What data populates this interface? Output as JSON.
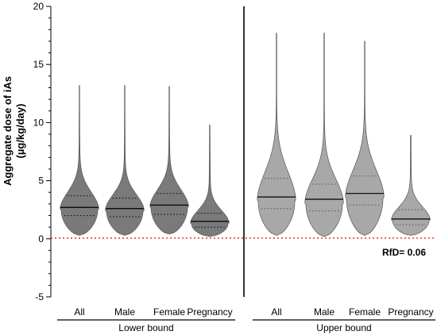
{
  "chart_data": {
    "type": "violin",
    "ylabel_line1": "Aggregate dose of iAs",
    "ylabel_line2": "(µg/kg/day)",
    "ylim": [
      -5,
      20
    ],
    "yticks": [
      -5,
      0,
      5,
      10,
      15,
      20
    ],
    "grid": false,
    "reference_line": {
      "label": "RfD= 0.06",
      "value": 0.06,
      "color": "#e02020"
    },
    "groups": [
      {
        "name": "Lower bound",
        "fill": "#7a7a7a",
        "quartile_style": "dotted-dark",
        "series": [
          {
            "category": "All",
            "min": 0.3,
            "q1": 2.0,
            "median": 2.7,
            "q3": 3.7,
            "max": 13.2,
            "peak": 2.5,
            "width": 0.92
          },
          {
            "category": "Male",
            "min": 0.3,
            "q1": 1.9,
            "median": 2.6,
            "q3": 3.5,
            "max": 13.2,
            "peak": 2.4,
            "width": 0.92
          },
          {
            "category": "Female",
            "min": 0.4,
            "q1": 2.1,
            "median": 2.9,
            "q3": 3.9,
            "max": 13.1,
            "peak": 2.7,
            "width": 0.92
          },
          {
            "category": "Pregnancy",
            "min": 0.2,
            "q1": 1.0,
            "median": 1.5,
            "q3": 2.2,
            "max": 9.8,
            "peak": 1.3,
            "width": 0.92
          }
        ]
      },
      {
        "name": "Upper bound",
        "fill": "#a8a8a8",
        "quartile_style": "dotted-light",
        "series": [
          {
            "category": "All",
            "min": 0.3,
            "q1": 2.6,
            "median": 3.6,
            "q3": 5.2,
            "max": 17.7,
            "peak": 3.2,
            "width": 0.92
          },
          {
            "category": "Male",
            "min": 0.2,
            "q1": 2.4,
            "median": 3.4,
            "q3": 4.7,
            "max": 17.7,
            "peak": 3.0,
            "width": 0.92
          },
          {
            "category": "Female",
            "min": 0.3,
            "q1": 2.9,
            "median": 3.9,
            "q3": 5.4,
            "max": 17.0,
            "peak": 3.5,
            "width": 0.92
          },
          {
            "category": "Pregnancy",
            "min": 0.3,
            "q1": 1.2,
            "median": 1.7,
            "q3": 2.5,
            "max": 8.9,
            "peak": 1.6,
            "width": 0.92
          }
        ]
      }
    ]
  }
}
